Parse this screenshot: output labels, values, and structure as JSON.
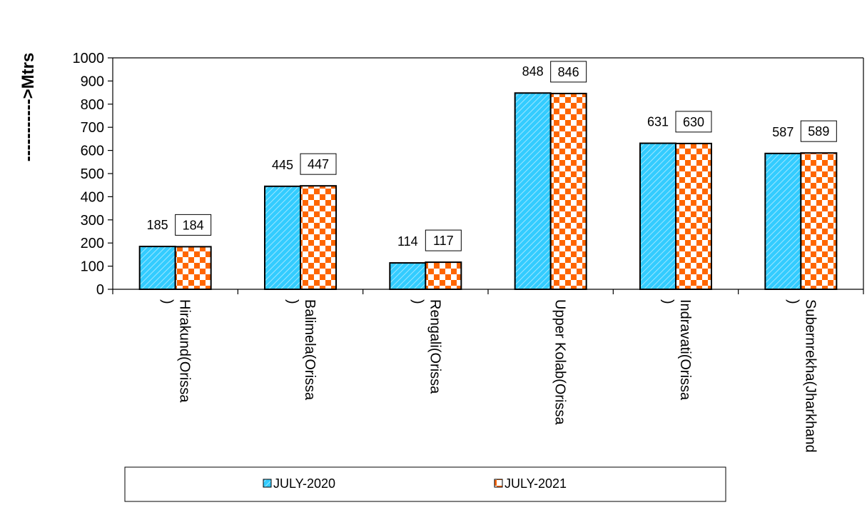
{
  "chart_data": {
    "type": "bar",
    "title": "",
    "xlabel": "",
    "ylabel": "----------->Mtrs",
    "ylim": [
      0,
      1000
    ],
    "yticks": [
      0,
      100,
      200,
      300,
      400,
      500,
      600,
      700,
      800,
      900,
      1000
    ],
    "grid": false,
    "legend_position": "bottom",
    "categories": [
      [
        "Hirakund(Orissa",
        ")"
      ],
      [
        "Balimela(Orissa",
        ")"
      ],
      [
        "Rengali(Orissa",
        ")"
      ],
      [
        "Upper Kolab(Orissa"
      ],
      [
        "Indravati(Orissa",
        ")"
      ],
      [
        "Subernrekha(Jharkhand",
        ")"
      ]
    ],
    "series": [
      {
        "name": "JULY-2020",
        "values": [
          185,
          445,
          114,
          848,
          631,
          587
        ],
        "color": "#33ccff",
        "pattern": "diagonal-stripe"
      },
      {
        "name": "JULY-2021",
        "values": [
          184,
          447,
          117,
          846,
          630,
          589
        ],
        "color": "#ff6600",
        "pattern": "checkerboard"
      }
    ]
  }
}
